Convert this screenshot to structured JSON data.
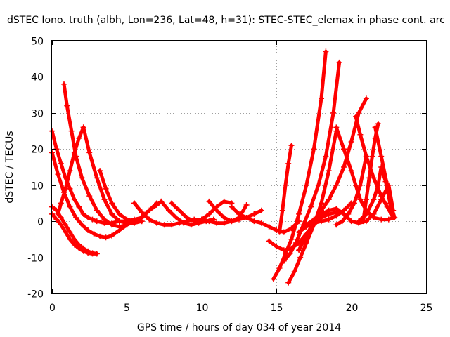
{
  "chart_data": {
    "type": "scatter",
    "title": "dSTEC Iono. truth (albh, Lon=236, Lat=48, h=31): STEC-STEC_elemax in phase cont. arc",
    "xlabel": "GPS time / hours of day 034 of year 2014",
    "ylabel": "dSTEC  / TECUs",
    "xlim": [
      0,
      25
    ],
    "ylim": [
      -20,
      50
    ],
    "x_ticks": [
      0,
      5,
      10,
      15,
      20,
      25
    ],
    "y_ticks": [
      -20,
      -10,
      0,
      10,
      20,
      30,
      40,
      50
    ],
    "grid": true,
    "legend": "none",
    "marker": "+",
    "color": "#ff0000",
    "series": [
      {
        "x": [
          0.0,
          0.3,
          0.6,
          0.9,
          1.2,
          1.5,
          1.8,
          2.1,
          2.4,
          2.7,
          3.0,
          3.5,
          4.0,
          4.5,
          5.0,
          5.5,
          6.0,
          6.5,
          7.0
        ],
        "y": [
          25,
          20,
          16,
          12,
          9,
          6,
          4,
          2,
          1,
          0.5,
          0,
          -0.5,
          -0.5,
          0,
          0,
          0.5,
          1,
          3,
          5
        ]
      },
      {
        "x": [
          0.0,
          0.4,
          0.8,
          1.2,
          1.6,
          2.0,
          2.4,
          2.8,
          3.2,
          3.6,
          4.0,
          4.5,
          5.0,
          5.5
        ],
        "y": [
          19,
          13,
          8,
          4,
          1,
          -1,
          -2.5,
          -3.5,
          -4.2,
          -4.5,
          -4,
          -2.5,
          -1,
          0
        ]
      },
      {
        "x": [
          0.0,
          0.3,
          0.6,
          0.9,
          1.2,
          1.5,
          1.8,
          2.1,
          2.4,
          2.7,
          3.0
        ],
        "y": [
          4,
          3,
          1,
          -1,
          -3,
          -5,
          -6.5,
          -7.5,
          -8.3,
          -8.8,
          -9
        ]
      },
      {
        "x": [
          0.0,
          0.3,
          0.6,
          0.9,
          1.2,
          1.5,
          1.8,
          2.1,
          2.4,
          2.7,
          3.0
        ],
        "y": [
          2,
          0.5,
          -1,
          -3,
          -5,
          -6.5,
          -7.5,
          -8.3,
          -8.8,
          -9,
          -9
        ]
      },
      {
        "x": [
          0.8,
          1.0,
          1.3,
          1.6,
          2.0,
          2.5,
          3.0,
          3.5,
          4.0,
          4.5,
          5.0,
          5.5
        ],
        "y": [
          38,
          32,
          25,
          18,
          12,
          7,
          3,
          0.5,
          -1,
          -1.5,
          -1,
          0
        ]
      },
      {
        "x": [
          0.4,
          0.6,
          0.9,
          1.2,
          1.5,
          1.8,
          2.1
        ],
        "y": [
          2,
          5,
          9,
          14,
          19,
          23,
          26
        ]
      },
      {
        "x": [
          2.1,
          2.5,
          3.0,
          3.5,
          4.0,
          4.5,
          5.0,
          5.5,
          6.0
        ],
        "y": [
          26,
          19,
          12,
          6,
          2,
          0,
          -0.5,
          -0.5,
          0
        ]
      },
      {
        "x": [
          3.2,
          3.6,
          4.0,
          4.5,
          5.0,
          5.5,
          6.0
        ],
        "y": [
          14,
          9,
          5,
          2,
          0.5,
          0,
          0
        ]
      },
      {
        "x": [
          5.5,
          6.0,
          6.5,
          7.0,
          7.5,
          8.0,
          8.5,
          9.0,
          9.5,
          10.0,
          10.5,
          11.0,
          11.5,
          12.0,
          12.5,
          13.0,
          13.5,
          14.0
        ],
        "y": [
          5,
          2.5,
          0.5,
          -0.5,
          -1,
          -1,
          -0.5,
          0,
          0.5,
          0.5,
          0,
          -0.5,
          -0.5,
          0,
          0.5,
          1,
          2,
          3
        ]
      },
      {
        "x": [
          5.7,
          6.1,
          6.5,
          7.0,
          7.3
        ],
        "y": [
          0,
          1.5,
          3,
          4.5,
          5.5
        ]
      },
      {
        "x": [
          7.3,
          7.8,
          8.3,
          8.8,
          9.3,
          9.8,
          10.3,
          10.8
        ],
        "y": [
          5.5,
          3,
          1,
          -0.5,
          -1,
          -0.5,
          0,
          0.5
        ]
      },
      {
        "x": [
          8.0,
          8.5,
          9.0,
          9.5,
          10.0,
          10.5,
          11.0,
          11.5,
          12.0
        ],
        "y": [
          5,
          3,
          1,
          0,
          0.5,
          2,
          4,
          5.5,
          5
        ]
      },
      {
        "x": [
          10.5,
          11.0,
          11.5,
          12.0,
          12.5,
          13.0
        ],
        "y": [
          5.5,
          3,
          1,
          0,
          1,
          4.5
        ]
      },
      {
        "x": [
          12.0,
          12.5,
          13.0,
          13.5,
          14.0,
          14.5,
          15.0,
          15.5,
          16.0,
          16.5
        ],
        "y": [
          4,
          2,
          1,
          0,
          -0.5,
          -1.5,
          -2.5,
          -3,
          -2,
          0
        ]
      },
      {
        "x": [
          14.5,
          15.0,
          15.5,
          16.0,
          16.5,
          17.0,
          17.5,
          18.0,
          18.5,
          19.0
        ],
        "y": [
          -5.5,
          -7,
          -8,
          -7.5,
          -6,
          -3.5,
          -1,
          1,
          2,
          2.5
        ]
      },
      {
        "x": [
          15.2,
          15.4,
          15.6,
          15.8,
          16.0
        ],
        "y": [
          -3,
          3,
          10,
          16,
          21
        ]
      },
      {
        "x": [
          14.8,
          15.2,
          15.6,
          16.0,
          16.5,
          17.0,
          17.5,
          18.0,
          18.3
        ],
        "y": [
          -16,
          -13,
          -9,
          -5,
          2,
          10,
          20,
          34,
          47
        ]
      },
      {
        "x": [
          15.5,
          15.9,
          16.3,
          16.8,
          17.3,
          17.8,
          18.3,
          18.8,
          19.2
        ],
        "y": [
          -11,
          -9,
          -6,
          -1,
          4,
          10,
          18,
          30,
          44
        ]
      },
      {
        "x": [
          15.8,
          16.2,
          16.6,
          17.0,
          17.5,
          18.0,
          18.5,
          19.0
        ],
        "y": [
          -17,
          -14,
          -10,
          -6,
          -1,
          5,
          14,
          25
        ]
      },
      {
        "x": [
          16.5,
          17.0,
          17.5,
          18.0,
          18.5,
          19.0,
          19.5,
          20.0,
          20.5,
          21.0
        ],
        "y": [
          -8,
          -4,
          0,
          3,
          6,
          10,
          15,
          22,
          30,
          34
        ]
      },
      {
        "x": [
          16.5,
          17.0,
          17.5,
          18.0,
          18.5,
          19.0,
          19.5,
          20.0
        ],
        "y": [
          -3,
          -1.5,
          -0.5,
          0,
          0.5,
          1.5,
          3,
          5
        ]
      },
      {
        "x": [
          17.0,
          17.5,
          18.0,
          18.5,
          19.0,
          19.5,
          20.0,
          20.5,
          21.0,
          21.5,
          22.0,
          22.5,
          22.8
        ],
        "y": [
          -1,
          0.5,
          2,
          3,
          3.5,
          2,
          0,
          -0.5,
          0,
          2,
          6,
          10,
          3
        ]
      },
      {
        "x": [
          19.0,
          19.5,
          20.0,
          20.3,
          20.6,
          21.0,
          21.5,
          22.0,
          22.5,
          22.8
        ],
        "y": [
          26,
          20,
          14,
          10,
          6,
          3,
          1,
          0.5,
          0.5,
          1
        ]
      },
      {
        "x": [
          19.0,
          19.4,
          19.8,
          20.2,
          20.6,
          21.0
        ],
        "y": [
          -1,
          0,
          2,
          5,
          10,
          18
        ]
      },
      {
        "x": [
          20.3,
          20.6,
          21.0,
          21.5,
          22.0,
          22.4,
          22.8
        ],
        "y": [
          29,
          24,
          18,
          12,
          7,
          4,
          1
        ]
      },
      {
        "x": [
          20.5,
          21.0,
          21.5,
          21.8,
          22.0,
          22.3,
          22.6,
          22.9
        ],
        "y": [
          0,
          2,
          6,
          10,
          15,
          11,
          5,
          1
        ]
      },
      {
        "x": [
          20.8,
          21.0,
          21.2,
          21.4,
          21.6,
          21.8
        ],
        "y": [
          0,
          6,
          12,
          18,
          23,
          27
        ]
      },
      {
        "x": [
          21.6,
          22.0,
          22.4,
          22.7
        ],
        "y": [
          26,
          18,
          10,
          2
        ]
      }
    ]
  },
  "colors": {
    "series": "#ff0000",
    "grid": "#a0a0a0",
    "axis": "#000000",
    "background": "#ffffff"
  }
}
